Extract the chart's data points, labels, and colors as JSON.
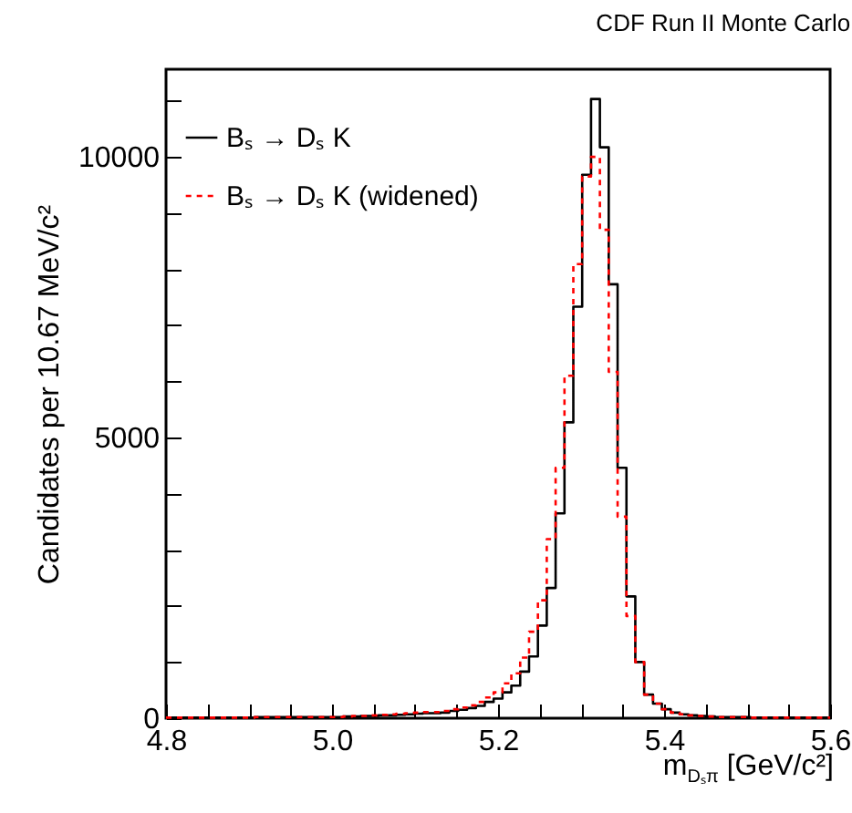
{
  "chart_data": {
    "type": "histogram",
    "title": "CDF Run II Monte Carlo",
    "xlabel": "m$_{Dₛπ}$ [GeV/c²]",
    "ylabel": "Candidates per 10.67 MeV/c²",
    "bins": [
      4.8,
      4.81067,
      4.82133,
      4.832,
      4.84267,
      4.85333,
      4.864,
      4.87467,
      4.88533,
      4.896,
      4.90667,
      4.91733,
      4.928,
      4.93867,
      4.94933,
      4.96,
      4.97067,
      4.98133,
      4.992,
      5.00267,
      5.01333,
      5.024,
      5.03467,
      5.04533,
      5.056,
      5.06667,
      5.07733,
      5.088,
      5.09867,
      5.10933,
      5.12,
      5.13067,
      5.14133,
      5.152,
      5.16267,
      5.17333,
      5.184,
      5.19467,
      5.20533,
      5.216,
      5.22667,
      5.23733,
      5.248,
      5.25867,
      5.26933,
      5.28,
      5.29067,
      5.30133,
      5.312,
      5.32267,
      5.33333,
      5.344,
      5.35467,
      5.36533,
      5.376,
      5.38667,
      5.39733,
      5.408,
      5.41867,
      5.42933,
      5.44,
      5.45067,
      5.46133,
      5.472,
      5.48267,
      5.49333,
      5.504,
      5.51467,
      5.52533,
      5.536,
      5.54667,
      5.55733,
      5.568,
      5.57867,
      5.58933,
      5.6
    ],
    "series": [
      {
        "name": "Bₛ → Dₛ K",
        "color": "#000000",
        "line_style": "solid",
        "values": [
          10,
          10,
          10,
          10,
          10,
          10,
          10,
          10,
          10,
          10,
          20,
          20,
          20,
          20,
          20,
          20,
          20,
          20,
          20,
          20,
          30,
          30,
          40,
          40,
          50,
          50,
          60,
          70,
          80,
          90,
          90,
          100,
          130,
          150,
          180,
          220,
          290,
          350,
          460,
          580,
          830,
          1100,
          1650,
          2320,
          3650,
          5270,
          7330,
          9680,
          11030,
          10170,
          7730,
          4460,
          2170,
          1000,
          420,
          260,
          160,
          100,
          70,
          50,
          40,
          30,
          20,
          20,
          20,
          20,
          10,
          10,
          10,
          10,
          10,
          10,
          10,
          10,
          10
        ]
      },
      {
        "name": "Bₛ → Dₛ K (widened)",
        "color": "#ff0000",
        "line_style": "dotted",
        "values": [
          10,
          10,
          10,
          10,
          10,
          10,
          10,
          10,
          10,
          10,
          20,
          20,
          20,
          20,
          20,
          20,
          20,
          20,
          20,
          20,
          30,
          40,
          40,
          50,
          60,
          70,
          80,
          90,
          100,
          110,
          110,
          130,
          160,
          190,
          230,
          290,
          370,
          460,
          620,
          800,
          1080,
          1540,
          2100,
          3190,
          4460,
          6100,
          8090,
          9650,
          10000,
          8700,
          6170,
          3590,
          1820,
          1000,
          420,
          260,
          160,
          100,
          70,
          50,
          40,
          30,
          20,
          20,
          20,
          20,
          10,
          10,
          10,
          10,
          10,
          10,
          10,
          10,
          10
        ]
      }
    ],
    "xlim": [
      4.8,
      5.6
    ],
    "xticks": [
      4.8,
      {
        "value": 4.85,
        "label": null
      },
      {
        "value": 4.9,
        "label": null
      },
      {
        "value": 4.95,
        "label": null
      },
      {
        "value": 5,
        "label": "5.0"
      },
      {
        "value": 5.05,
        "label": null
      },
      {
        "value": 5.1,
        "label": null
      },
      {
        "value": 5.15,
        "label": null
      },
      5.2,
      {
        "value": 5.25,
        "label": null
      },
      {
        "value": 5.3,
        "label": null
      },
      {
        "value": 5.35,
        "label": null
      },
      5.4,
      {
        "value": 5.45,
        "label": null
      },
      {
        "value": 5.5,
        "label": null
      },
      {
        "value": 5.55,
        "label": null
      },
      5.6
    ],
    "ylim": [
      0,
      11560
    ],
    "yticks": [
      0,
      {
        "value": 1000,
        "label": null
      },
      {
        "value": 2000,
        "label": null
      },
      {
        "value": 3000,
        "label": null
      },
      {
        "value": 4000,
        "label": null
      },
      5000,
      {
        "value": 6000,
        "label": null
      },
      {
        "value": 7000,
        "label": null
      },
      {
        "value": 8000,
        "label": null
      },
      {
        "value": 9000,
        "label": null
      },
      10000,
      {
        "value": 11000,
        "label": null
      }
    ],
    "legend": "top left"
  }
}
